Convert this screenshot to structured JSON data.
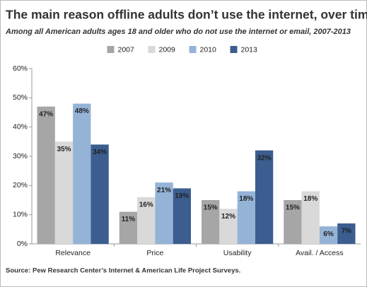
{
  "chart_data": {
    "type": "bar",
    "title": "The main reason offline adults don’t use the internet, over time",
    "subtitle": "Among all American adults ages 18 and older who do not use the internet or email, 2007-2013",
    "source": "Source: Pew Research Center’s Internet & American Life Project Surveys.",
    "categories": [
      "Relevance",
      "Price",
      "Usability",
      "Avail. / Access"
    ],
    "series": [
      {
        "name": "2007",
        "color": "#a6a6a6",
        "values": [
          47,
          11,
          15,
          15
        ],
        "value_labels": [
          "47%",
          "11%",
          "15%",
          "15%"
        ]
      },
      {
        "name": "2009",
        "color": "#d9d9d9",
        "values": [
          35,
          16,
          12,
          18
        ],
        "value_labels": [
          "35%",
          "16%",
          "12%",
          "18%"
        ]
      },
      {
        "name": "2010",
        "color": "#95b3d7",
        "values": [
          48,
          21,
          18,
          6
        ],
        "value_labels": [
          "48%",
          "21%",
          "18%",
          "6%"
        ]
      },
      {
        "name": "2013",
        "color": "#3b5d8f",
        "values": [
          34,
          19,
          32,
          7
        ],
        "value_labels": [
          "34%",
          "19%",
          "32%",
          "7%"
        ]
      }
    ],
    "ylim": [
      0,
      60
    ],
    "yticks": [
      {
        "value": 0,
        "label": "0%"
      },
      {
        "value": 10,
        "label": "10%"
      },
      {
        "value": 20,
        "label": "20%"
      },
      {
        "value": 30,
        "label": "30%"
      },
      {
        "value": 40,
        "label": "40%"
      },
      {
        "value": 50,
        "label": "50%"
      },
      {
        "value": 60,
        "label": "60%"
      }
    ],
    "grid": false,
    "legend": "top"
  }
}
